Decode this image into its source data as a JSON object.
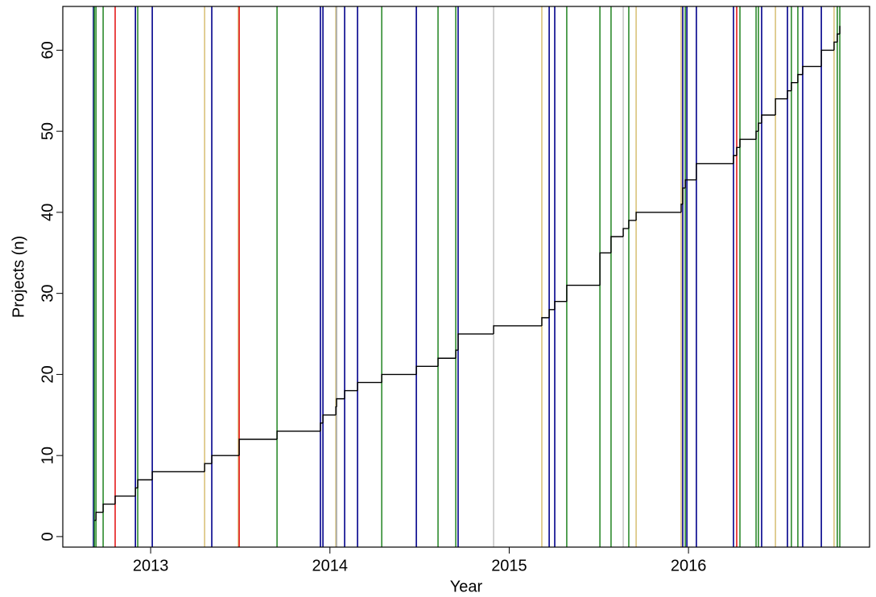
{
  "chart_data": {
    "type": "step",
    "x_label": "Year",
    "y_label": "Projects (n)",
    "xlim": [
      2012.51,
      2017.01
    ],
    "ylim": [
      -1.3,
      65.4
    ],
    "xticks": [
      2013,
      2014,
      2015,
      2016
    ],
    "yticks": [
      0,
      10,
      20,
      30,
      40,
      50,
      60
    ],
    "line_color": "#000000",
    "x": [
      2012.686,
      2012.695,
      2012.735,
      2012.802,
      2012.915,
      2012.928,
      2013.009,
      2013.301,
      2013.341,
      2013.494,
      2013.705,
      2013.947,
      2013.961,
      2014.033,
      2014.037,
      2014.082,
      2014.154,
      2014.289,
      2014.482,
      2014.603,
      2014.702,
      2014.715,
      2014.913,
      2015.182,
      2015.223,
      2015.254,
      2015.321,
      2015.506,
      2015.568,
      2015.636,
      2015.667,
      2015.708,
      2015.959,
      2015.968,
      2015.982,
      2016.044,
      2016.251,
      2016.269,
      2016.287,
      2016.377,
      2016.39,
      2016.408,
      2016.485,
      2016.552,
      2016.574,
      2016.61,
      2016.637,
      2016.741,
      2016.812,
      2016.83,
      2016.844
    ],
    "values": [
      2,
      3,
      4,
      5,
      6,
      7,
      8,
      9,
      10,
      12,
      13,
      14,
      15,
      16,
      17,
      18,
      19,
      20,
      21,
      22,
      23,
      25,
      26,
      27,
      28,
      29,
      31,
      35,
      37,
      38,
      39,
      40,
      41,
      43,
      44,
      46,
      47,
      48,
      49,
      50,
      51,
      52,
      54,
      55,
      56,
      57,
      58,
      60,
      61,
      62,
      63
    ],
    "event_lines": {
      "x": [
        2012.681,
        2012.686,
        2012.695,
        2012.735,
        2012.802,
        2012.915,
        2012.928,
        2013.009,
        2013.301,
        2013.341,
        2013.489,
        2013.494,
        2013.705,
        2013.947,
        2013.961,
        2014.033,
        2014.037,
        2014.082,
        2014.154,
        2014.289,
        2014.482,
        2014.603,
        2014.702,
        2014.715,
        2014.913,
        2015.182,
        2015.223,
        2015.254,
        2015.321,
        2015.506,
        2015.568,
        2015.636,
        2015.667,
        2015.708,
        2015.959,
        2015.968,
        2015.982,
        2015.991,
        2016.044,
        2016.251,
        2016.269,
        2016.287,
        2016.377,
        2016.39,
        2016.408,
        2016.485,
        2016.552,
        2016.574,
        2016.61,
        2016.637,
        2016.741,
        2016.812,
        2016.83,
        2016.844
      ],
      "colors": [
        "#00008b",
        "#2e8b2e",
        "#2e8b2e",
        "#2e8b2e",
        "#e41a1c",
        "#00008b",
        "#2e8b2e",
        "#00008b",
        "#d9c27a",
        "#00008b",
        "#d9c27a",
        "#e41a1c",
        "#2e8b2e",
        "#00008b",
        "#00008b",
        "#d9c27a",
        "#a8a8a8",
        "#00008b",
        "#00008b",
        "#2e8b2e",
        "#00008b",
        "#2e8b2e",
        "#2e8b2e",
        "#00008b",
        "#c8c8c8",
        "#d9c27a",
        "#00008b",
        "#00008b",
        "#2e8b2e",
        "#2e8b2e",
        "#2e8b2e",
        "#c8c8c8",
        "#2e8b2e",
        "#d9c27a",
        "#d9c27a",
        "#00008b",
        "#2e8b2e",
        "#00008b",
        "#00008b",
        "#00008b",
        "#e41a1c",
        "#2e8b2e",
        "#2e8b2e",
        "#2e8b2e",
        "#00008b",
        "#d9c27a",
        "#00008b",
        "#2e8b2e",
        "#2e8b2e",
        "#00008b",
        "#00008b",
        "#d9c27a",
        "#2e8b2e",
        "#2e8b2e"
      ]
    }
  }
}
